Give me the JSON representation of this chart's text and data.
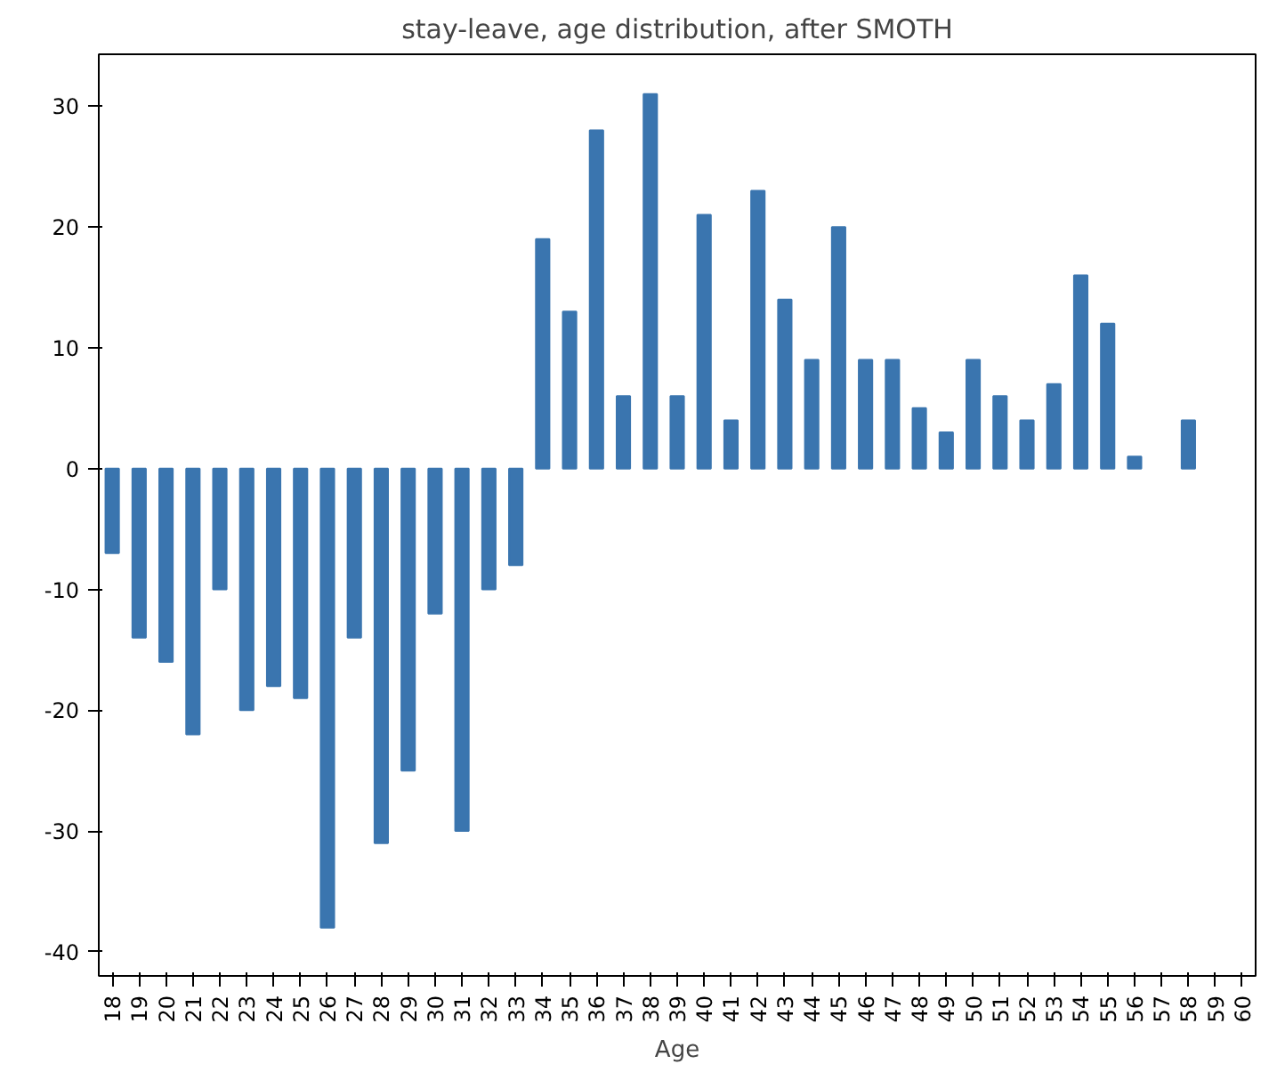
{
  "chart_data": {
    "type": "bar",
    "title": "stay-leave, age distribution, after SMOTH",
    "xlabel": "Age",
    "categories": [
      "18",
      "19",
      "20",
      "21",
      "22",
      "23",
      "24",
      "25",
      "26",
      "27",
      "28",
      "29",
      "30",
      "31",
      "32",
      "33",
      "34",
      "35",
      "36",
      "37",
      "38",
      "39",
      "40",
      "41",
      "42",
      "43",
      "44",
      "45",
      "46",
      "47",
      "48",
      "49",
      "50",
      "51",
      "52",
      "53",
      "54",
      "55",
      "56",
      "57",
      "58",
      "59",
      "60"
    ],
    "values": [
      -7,
      -14,
      -16,
      -22,
      -10,
      -20,
      -18,
      -19,
      -38,
      -14,
      -31,
      -25,
      -12,
      -30,
      -10,
      -8,
      19,
      13,
      28,
      6,
      31,
      6,
      21,
      4,
      23,
      14,
      9,
      20,
      9,
      9,
      5,
      3,
      9,
      6,
      4,
      7,
      16,
      12,
      1,
      null,
      4,
      null,
      null
    ],
    "color": "#3a75af",
    "ylim": [
      -42,
      34.3
    ],
    "yticks": [
      -40,
      -30,
      -20,
      -10,
      0,
      10,
      20,
      30
    ],
    "grid": false
  }
}
